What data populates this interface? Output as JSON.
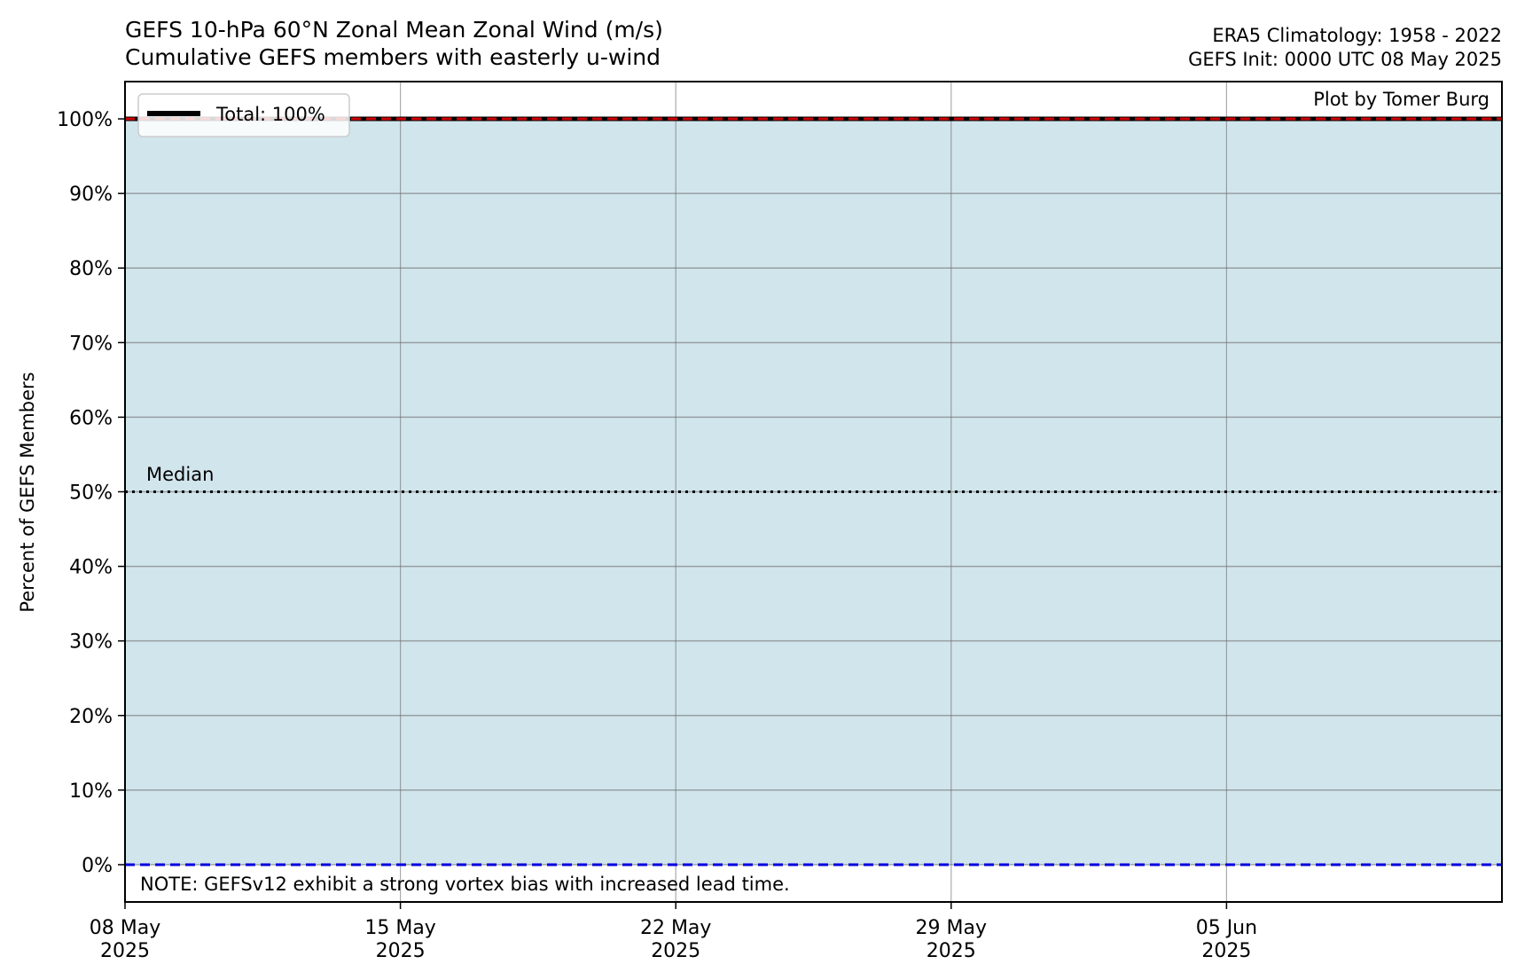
{
  "chart_data": {
    "type": "area",
    "title": "GEFS 10-hPa 60°N Zonal Mean Zonal Wind (m/s)",
    "subtitle": "Cumulative GEFS members with easterly u-wind",
    "info_lines": [
      "ERA5 Climatology: 1958 - 2022",
      "GEFS Init: 0000 UTC 08 May 2025"
    ],
    "credit": "Plot by Tomer Burg",
    "ylabel": "Percent of GEFS Members",
    "xlabel": "",
    "xlim": [
      "2025-05-08",
      "2025-06-12"
    ],
    "ylim": [
      -5,
      105
    ],
    "x_ticks": [
      {
        "date": "2025-05-08",
        "line1": "08 May",
        "line2": "2025"
      },
      {
        "date": "2025-05-15",
        "line1": "15 May",
        "line2": "2025"
      },
      {
        "date": "2025-05-22",
        "line1": "22 May",
        "line2": "2025"
      },
      {
        "date": "2025-05-29",
        "line1": "29 May",
        "line2": "2025"
      },
      {
        "date": "2025-06-05",
        "line1": "05 Jun",
        "line2": "2025"
      }
    ],
    "y_ticks": [
      {
        "value": 0,
        "label": "0%"
      },
      {
        "value": 10,
        "label": "10%"
      },
      {
        "value": 20,
        "label": "20%"
      },
      {
        "value": 30,
        "label": "30%"
      },
      {
        "value": 40,
        "label": "40%"
      },
      {
        "value": 50,
        "label": "50%"
      },
      {
        "value": 60,
        "label": "60%"
      },
      {
        "value": 70,
        "label": "70%"
      },
      {
        "value": 80,
        "label": "80%"
      },
      {
        "value": 90,
        "label": "90%"
      },
      {
        "value": 100,
        "label": "100%"
      }
    ],
    "grid": true,
    "series": [
      {
        "name": "Total: 100%",
        "color": "#000000",
        "fill_color": "#d1e5ec",
        "x": [
          "2025-05-08",
          "2025-06-12"
        ],
        "y": [
          100,
          100
        ]
      }
    ],
    "reference_lines": [
      {
        "value": 100,
        "style": "dashed",
        "color": "#d00000"
      },
      {
        "value": 50,
        "style": "dotted",
        "color": "#000000",
        "label": "Median"
      },
      {
        "value": 0,
        "style": "dashed",
        "color": "#0000dd"
      }
    ],
    "legend_placement": "top-left",
    "note": "NOTE: GEFSv12 exhibit a strong vortex bias with increased lead time."
  }
}
